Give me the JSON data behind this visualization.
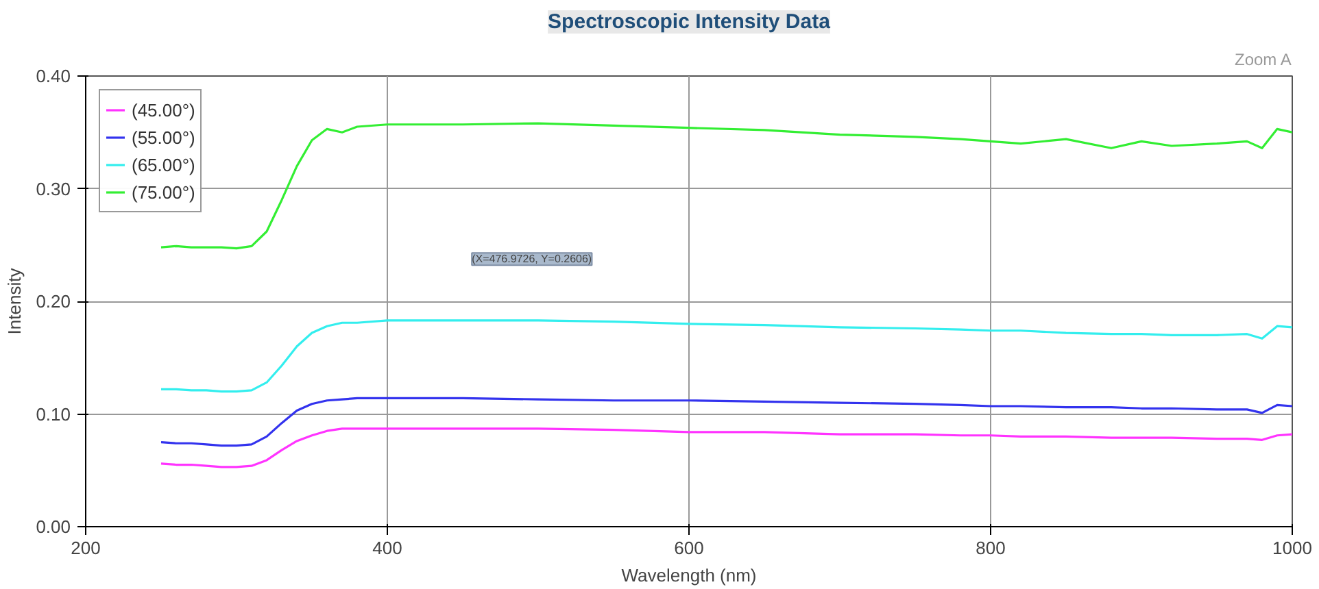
{
  "chart_data": {
    "type": "line",
    "title": "Spectroscopic Intensity Data",
    "xlabel": "Wavelength (nm)",
    "ylabel": "Intensity",
    "annotations": [
      "(X=476.9726, Y=0.2606)",
      "Zoom A"
    ],
    "x": [
      250,
      260,
      270,
      280,
      290,
      300,
      310,
      320,
      330,
      340,
      350,
      360,
      370,
      380,
      400,
      450,
      500,
      550,
      600,
      650,
      700,
      750,
      780,
      800,
      820,
      850,
      880,
      900,
      920,
      950,
      970,
      980,
      990,
      1000
    ],
    "series": [
      {
        "name": "(45.00°)",
        "color": "#ff33ff",
        "values": [
          0.056,
          0.055,
          0.055,
          0.054,
          0.053,
          0.053,
          0.054,
          0.059,
          0.068,
          0.076,
          0.081,
          0.085,
          0.087,
          0.087,
          0.087,
          0.087,
          0.087,
          0.086,
          0.084,
          0.084,
          0.082,
          0.082,
          0.081,
          0.081,
          0.08,
          0.08,
          0.079,
          0.079,
          0.079,
          0.078,
          0.078,
          0.077,
          0.081,
          0.082
        ]
      },
      {
        "name": "(55.00°)",
        "color": "#3333ee",
        "values": [
          0.075,
          0.074,
          0.074,
          0.073,
          0.072,
          0.072,
          0.073,
          0.08,
          0.092,
          0.103,
          0.109,
          0.112,
          0.113,
          0.114,
          0.114,
          0.114,
          0.113,
          0.112,
          0.112,
          0.111,
          0.11,
          0.109,
          0.108,
          0.107,
          0.107,
          0.106,
          0.106,
          0.105,
          0.105,
          0.104,
          0.104,
          0.101,
          0.108,
          0.107
        ]
      },
      {
        "name": "(65.00°)",
        "color": "#33eeee",
        "values": [
          0.122,
          0.122,
          0.121,
          0.121,
          0.12,
          0.12,
          0.121,
          0.128,
          0.143,
          0.16,
          0.172,
          0.178,
          0.181,
          0.181,
          0.183,
          0.183,
          0.183,
          0.182,
          0.18,
          0.179,
          0.177,
          0.176,
          0.175,
          0.174,
          0.174,
          0.172,
          0.171,
          0.171,
          0.17,
          0.17,
          0.171,
          0.167,
          0.178,
          0.177
        ]
      },
      {
        "name": "(75.00°)",
        "color": "#33ee33",
        "values": [
          0.248,
          0.249,
          0.248,
          0.248,
          0.248,
          0.247,
          0.249,
          0.262,
          0.29,
          0.32,
          0.343,
          0.353,
          0.35,
          0.355,
          0.357,
          0.357,
          0.358,
          0.356,
          0.354,
          0.352,
          0.348,
          0.346,
          0.344,
          0.342,
          0.34,
          0.344,
          0.336,
          0.342,
          0.338,
          0.34,
          0.342,
          0.336,
          0.353,
          0.35
        ]
      }
    ],
    "xlim": [
      200,
      1000
    ],
    "ylim": [
      0,
      0.4
    ],
    "xticks": [
      200,
      400,
      600,
      800,
      1000
    ],
    "yticks": [
      {
        "value": 0,
        "label": "0.00"
      },
      {
        "value": 0.1,
        "label": "0.10"
      },
      {
        "value": 0.2,
        "label": "0.20"
      },
      {
        "value": 0.3,
        "label": "0.30"
      },
      {
        "value": 0.4,
        "label": "0.40"
      }
    ],
    "grid": true,
    "legend": "top left",
    "marker": "none",
    "line_style": "solid"
  }
}
